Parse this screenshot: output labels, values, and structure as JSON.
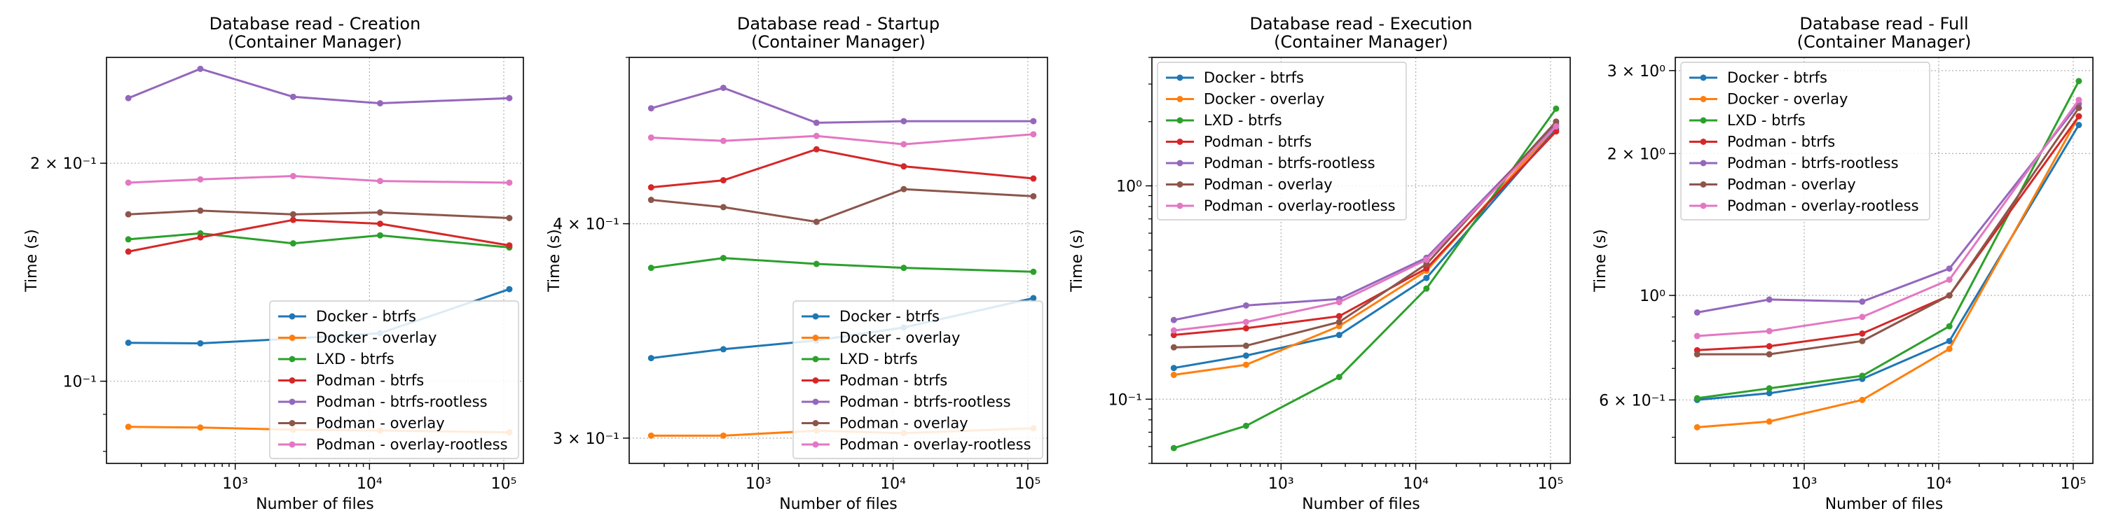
{
  "colors": {
    "Docker - btrfs": "#1f77b4",
    "Docker - overlay": "#ff7f0e",
    "LXD - btrfs": "#2ca02c",
    "Podman - btrfs": "#d62728",
    "Podman - btrfs-rootless": "#9467bd",
    "Podman - overlay": "#8c564b",
    "Podman - overlay-rootless": "#e377c2"
  },
  "chart_data": [
    {
      "type": "line",
      "title": "Database read - Creation",
      "subtitle": "(Container Manager)",
      "xlabel": "Number of files",
      "ylabel": "Time (s)",
      "xscale": "log",
      "yscale": "log",
      "xlim": [
        110,
        140000
      ],
      "ylim": [
        0.077,
        0.28
      ],
      "grid": true,
      "legend_position": "lower-right",
      "x_ticks": [
        {
          "value": 1000,
          "label": "10³"
        },
        {
          "value": 10000,
          "label": "10⁴"
        },
        {
          "value": 100000,
          "label": "10⁵"
        }
      ],
      "y_ticks": [
        {
          "value": 0.1,
          "label": "10⁻¹"
        },
        {
          "value": 0.2,
          "label": "2 × 10⁻¹"
        }
      ],
      "x": [
        160,
        550,
        2700,
        12000,
        110000
      ],
      "series": [
        {
          "name": "Docker - btrfs",
          "values": [
            0.113,
            0.1128,
            0.1145,
            0.1165,
            0.134
          ]
        },
        {
          "name": "Docker - overlay",
          "values": [
            0.0865,
            0.0863,
            0.0857,
            0.0855,
            0.085
          ]
        },
        {
          "name": "LXD - btrfs",
          "values": [
            0.157,
            0.16,
            0.155,
            0.159,
            0.153
          ]
        },
        {
          "name": "Podman - btrfs",
          "values": [
            0.151,
            0.158,
            0.167,
            0.165,
            0.154
          ]
        },
        {
          "name": "Podman - btrfs-rootless",
          "values": [
            0.246,
            0.27,
            0.247,
            0.242,
            0.246
          ]
        },
        {
          "name": "Podman - overlay",
          "values": [
            0.17,
            0.172,
            0.17,
            0.171,
            0.168
          ]
        },
        {
          "name": "Podman - overlay-rootless",
          "values": [
            0.188,
            0.19,
            0.192,
            0.189,
            0.188
          ]
        }
      ]
    },
    {
      "type": "line",
      "title": "Database read - Startup",
      "subtitle": "(Container Manager)",
      "xlabel": "Number of files",
      "ylabel": "Time (s)",
      "xscale": "log",
      "yscale": "log",
      "xlim": [
        110,
        140000
      ],
      "ylim": [
        0.29,
        0.5
      ],
      "grid": true,
      "legend_position": "lower-right",
      "x_ticks": [
        {
          "value": 1000,
          "label": "10³"
        },
        {
          "value": 10000,
          "label": "10⁴"
        },
        {
          "value": 100000,
          "label": "10⁵"
        }
      ],
      "y_ticks": [
        {
          "value": 0.3,
          "label": "3 × 10⁻¹"
        },
        {
          "value": 0.4,
          "label": "4 × 10⁻¹"
        }
      ],
      "x": [
        160,
        550,
        2700,
        12000,
        110000
      ],
      "series": [
        {
          "name": "Docker - btrfs",
          "values": [
            0.334,
            0.338,
            0.342,
            0.348,
            0.362
          ]
        },
        {
          "name": "Docker - overlay",
          "values": [
            0.301,
            0.301,
            0.303,
            0.302,
            0.304
          ]
        },
        {
          "name": "LXD - btrfs",
          "values": [
            0.377,
            0.382,
            0.379,
            0.377,
            0.375
          ]
        },
        {
          "name": "Podman - btrfs",
          "values": [
            0.42,
            0.424,
            0.442,
            0.432,
            0.425
          ]
        },
        {
          "name": "Podman - btrfs-rootless",
          "values": [
            0.467,
            0.48,
            0.458,
            0.459,
            0.459
          ]
        },
        {
          "name": "Podman - overlay",
          "values": [
            0.413,
            0.409,
            0.401,
            0.419,
            0.415
          ]
        },
        {
          "name": "Podman - overlay-rootless",
          "values": [
            0.449,
            0.447,
            0.45,
            0.445,
            0.451
          ]
        }
      ]
    },
    {
      "type": "line",
      "title": "Database read - Execution",
      "subtitle": "(Container Manager)",
      "xlabel": "Number of files",
      "ylabel": "Time (s)",
      "xscale": "log",
      "yscale": "log",
      "xlim": [
        110,
        140000
      ],
      "ylim": [
        0.05,
        4.0
      ],
      "grid": true,
      "legend_position": "upper-left",
      "x_ticks": [
        {
          "value": 1000,
          "label": "10³"
        },
        {
          "value": 10000,
          "label": "10⁴"
        },
        {
          "value": 100000,
          "label": "10⁵"
        }
      ],
      "y_ticks": [
        {
          "value": 0.1,
          "label": "10⁻¹"
        },
        {
          "value": 1,
          "label": "10⁰"
        }
      ],
      "x": [
        160,
        550,
        2700,
        12000,
        110000
      ],
      "series": [
        {
          "name": "Docker - btrfs",
          "values": [
            0.14,
            0.16,
            0.2,
            0.37,
            1.85
          ]
        },
        {
          "name": "Docker - overlay",
          "values": [
            0.13,
            0.145,
            0.22,
            0.4,
            1.9
          ]
        },
        {
          "name": "LXD - btrfs",
          "values": [
            0.059,
            0.075,
            0.127,
            0.33,
            2.3
          ]
        },
        {
          "name": "Podman - btrfs",
          "values": [
            0.2,
            0.215,
            0.245,
            0.41,
            1.8
          ]
        },
        {
          "name": "Podman - btrfs-rootless",
          "values": [
            0.235,
            0.275,
            0.295,
            0.46,
            1.95
          ]
        },
        {
          "name": "Podman - overlay",
          "values": [
            0.175,
            0.178,
            0.23,
            0.43,
            2.0
          ]
        },
        {
          "name": "Podman - overlay-rootless",
          "values": [
            0.21,
            0.23,
            0.285,
            0.45,
            1.9
          ]
        }
      ]
    },
    {
      "type": "line",
      "title": "Database read - Full",
      "subtitle": "(Container Manager)",
      "xlabel": "Number of files",
      "ylabel": "Time (s)",
      "xscale": "log",
      "yscale": "log",
      "xlim": [
        110,
        140000
      ],
      "ylim": [
        0.44,
        3.2
      ],
      "grid": true,
      "legend_position": "upper-left",
      "x_ticks": [
        {
          "value": 1000,
          "label": "10³"
        },
        {
          "value": 10000,
          "label": "10⁴"
        },
        {
          "value": 100000,
          "label": "10⁵"
        }
      ],
      "y_ticks": [
        {
          "value": 0.6,
          "label": "6 × 10⁻¹"
        },
        {
          "value": 1,
          "label": "10⁰"
        },
        {
          "value": 2,
          "label": "2 × 10⁰"
        },
        {
          "value": 3,
          "label": "3 × 10⁰"
        }
      ],
      "x": [
        160,
        550,
        2700,
        12000,
        110000
      ],
      "series": [
        {
          "name": "Docker - btrfs",
          "values": [
            0.6,
            0.62,
            0.665,
            0.8,
            2.3
          ]
        },
        {
          "name": "Docker - overlay",
          "values": [
            0.525,
            0.54,
            0.6,
            0.77,
            2.4
          ]
        },
        {
          "name": "LXD - btrfs",
          "values": [
            0.605,
            0.635,
            0.675,
            0.86,
            2.85
          ]
        },
        {
          "name": "Podman - btrfs",
          "values": [
            0.765,
            0.78,
            0.83,
            1.0,
            2.4
          ]
        },
        {
          "name": "Podman - btrfs-rootless",
          "values": [
            0.92,
            0.98,
            0.97,
            1.14,
            2.55
          ]
        },
        {
          "name": "Podman - overlay",
          "values": [
            0.75,
            0.75,
            0.8,
            1.0,
            2.5
          ]
        },
        {
          "name": "Podman - overlay-rootless",
          "values": [
            0.82,
            0.84,
            0.9,
            1.08,
            2.6
          ]
        }
      ]
    }
  ]
}
